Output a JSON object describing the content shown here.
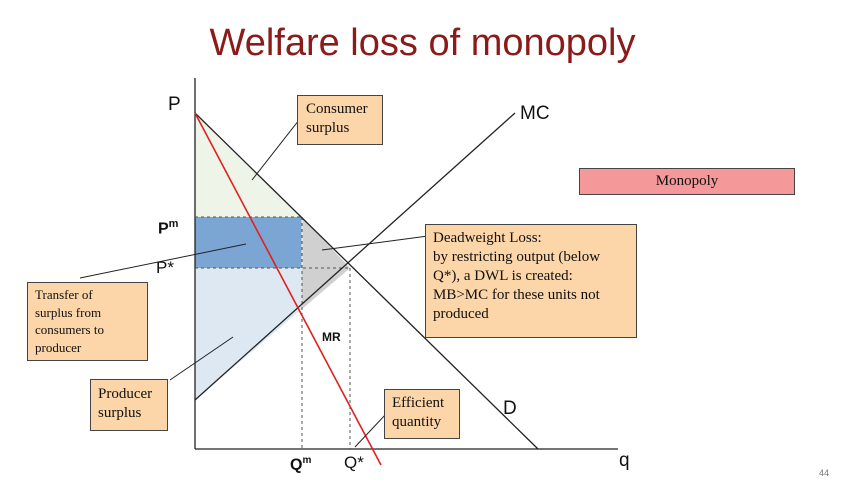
{
  "title": "Welfare loss of monopoly",
  "axes": {
    "price": "P",
    "quantity": "q"
  },
  "curves": {
    "mc": "MC",
    "mr": "MR",
    "demand": "D"
  },
  "price_labels": {
    "pm": "P",
    "pm_sup": "m",
    "pstar": "P*"
  },
  "quantity_labels": {
    "qm": "Q",
    "qm_sup": "m",
    "qstar": "Q*"
  },
  "callouts": {
    "consumer_surplus": [
      "Consumer",
      "surplus"
    ],
    "transfer": [
      "Transfer of",
      "surplus from",
      "consumers to",
      "producer"
    ],
    "producer_surplus": [
      "Producer",
      "surplus"
    ],
    "deadweight_loss": [
      "Deadweight Loss:",
      "by restricting output (below",
      "Q*), a DWL is created:",
      "MB>MC for these units not",
      "produced"
    ],
    "efficient_quantity": [
      "Efficient",
      "quantity"
    ]
  },
  "monopoly_label": "Monopoly",
  "page_number": "44",
  "colors": {
    "title": "#8b1a1a",
    "consumer_surplus": "#eef4e8",
    "transfer": "#7ba6d4",
    "producer_surplus": "#dde8f3",
    "deadweight_loss": "#d0d0d0",
    "mr_line": "#e02020",
    "callout": "#fcd5a8",
    "monopoly_box": "#f4989a"
  }
}
